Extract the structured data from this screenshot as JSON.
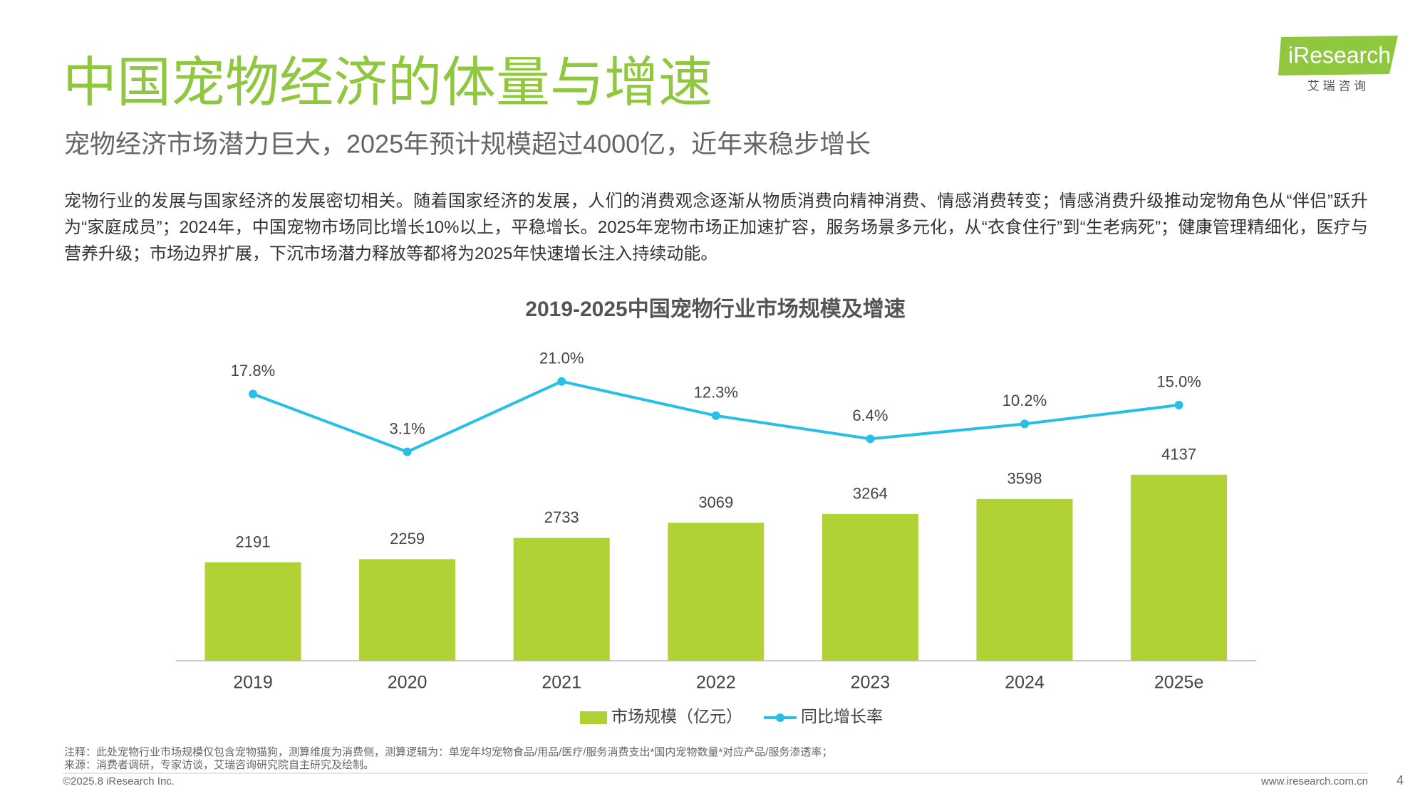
{
  "header": {
    "title": "中国宠物经济的体量与增速",
    "subtitle": "宠物经济市场潜力巨大，2025年预计规模超过4000亿，近年来稳步增长",
    "logo": "iResearch",
    "logo_cn": "艾 瑞 咨 询"
  },
  "body": {
    "paragraph": "宠物行业的发展与国家经济的发展密切相关。随着国家经济的发展，人们的消费观念逐渐从物质消费向精神消费、情感消费转变；情感消费升级推动宠物角色从“伴侣”跃升为“家庭成员”；2024年，中国宠物市场同比增长10%以上，平稳增长。2025年宠物市场正加速扩容，服务场景多元化，从“衣食住行”到“生老病死”；健康管理精细化，医疗与营养升级；市场边界扩展，下沉市场潜力释放等都将为2025年快速增长注入持续动能。"
  },
  "chart_data": {
    "type": "combo",
    "title": "2019-2025中国宠物行业市场规模及增速",
    "categories": [
      "2019",
      "2020",
      "2021",
      "2022",
      "2023",
      "2024",
      "2025e"
    ],
    "series": [
      {
        "name": "市场规模（亿元）",
        "type": "bar",
        "color": "#b1d235",
        "values": [
          2191,
          2259,
          2733,
          3069,
          3264,
          3598,
          4137
        ]
      },
      {
        "name": "同比增长率",
        "type": "line",
        "axis": "y2",
        "color": "#27bfe6",
        "values": [
          17.8,
          3.1,
          21.0,
          12.3,
          6.4,
          10.2,
          15.0
        ],
        "value_labels": [
          "17.8%",
          "3.1%",
          "21.0%",
          "12.3%",
          "6.4%",
          "10.2%",
          "15.0%"
        ]
      }
    ],
    "ylim": [
      0,
      7000
    ],
    "y2lim": [
      -50,
      30
    ],
    "legend": "bottom"
  },
  "footer": {
    "note": "注释：此处宠物行业市场规模仅包含宠物猫狗，测算维度为消费侧，测算逻辑为：单宠年均宠物食品/用品/医疗/服务消费支出*国内宠物数量*对应产品/服务渗透率；",
    "source": "来源：消费者调研，专家访谈，艾瑞咨询研究院自主研究及绘制。",
    "copyright": "©2025.8 iResearch Inc.",
    "url": "www.iresearch.com.cn",
    "page": "4"
  }
}
